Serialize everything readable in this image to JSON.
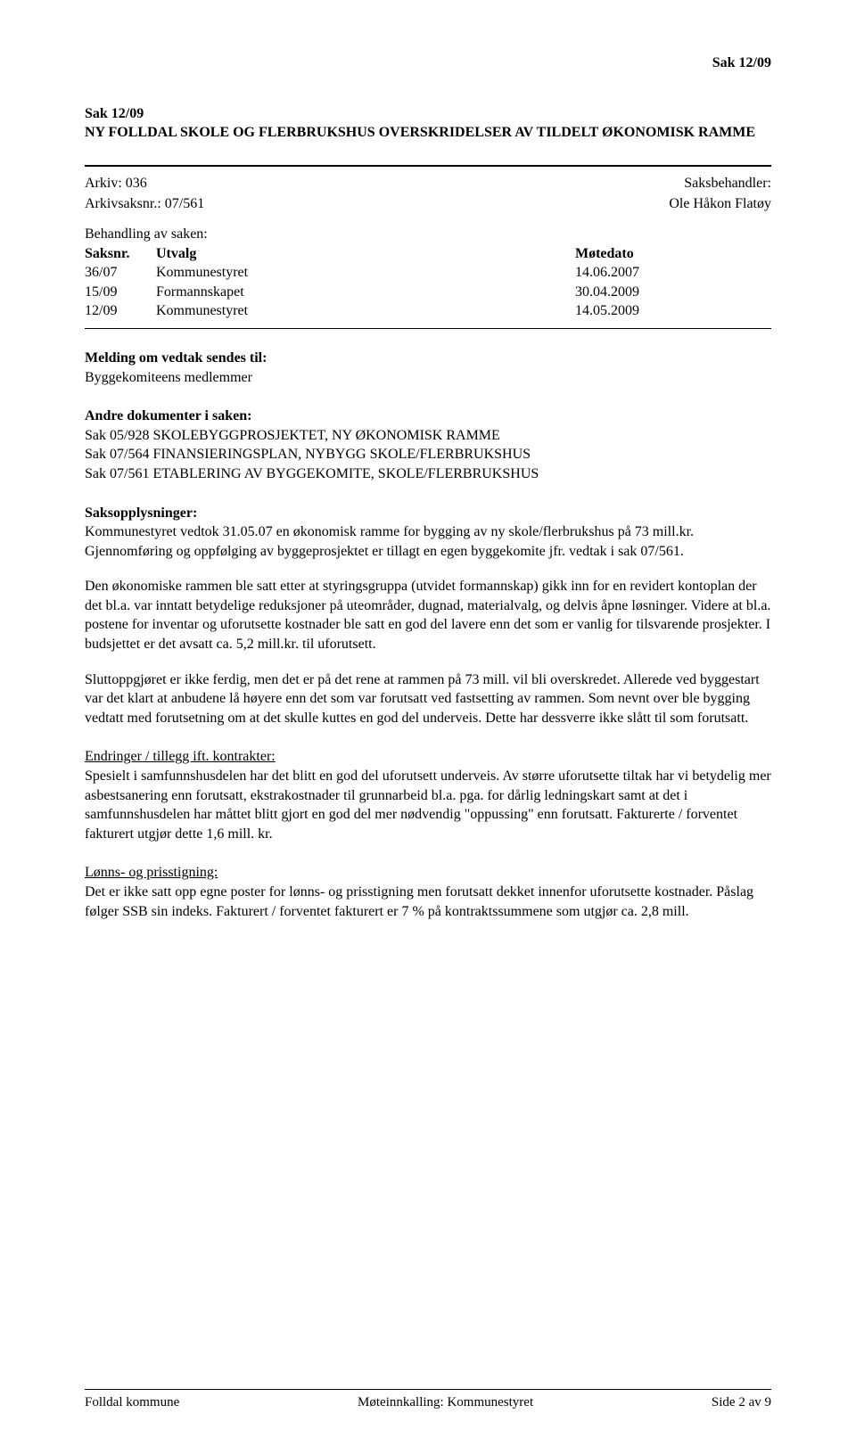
{
  "header": {
    "topRight": "Sak  12/09"
  },
  "title": {
    "line1": "Sak  12/09",
    "line2": "NY FOLLDAL SKOLE OG FLERBRUKSHUS OVERSKRIDELSER AV TILDELT ØKONOMISK RAMME"
  },
  "arkiv": {
    "leftLabel1": "Arkiv: 036",
    "leftLabel2": "Arkivsaksnr.: 07/561",
    "rightLabel1": "Saksbehandler:",
    "rightLabel2": "Ole Håkon Flatøy"
  },
  "behandling": {
    "header": "Behandling av saken:",
    "columns": {
      "saksnr": "Saksnr.",
      "utvalg": "Utvalg",
      "motedato": "Møtedato"
    },
    "rows": [
      {
        "saksnr": "36/07",
        "utvalg": "Kommunestyret",
        "dato": "14.06.2007"
      },
      {
        "saksnr": "15/09",
        "utvalg": "Formannskapet",
        "dato": "30.04.2009"
      },
      {
        "saksnr": "12/09",
        "utvalg": "Kommunestyret",
        "dato": "14.05.2009"
      }
    ]
  },
  "melding": {
    "heading": "Melding om vedtak sendes til:",
    "line1": "Byggekomiteens medlemmer"
  },
  "andreDok": {
    "heading": "Andre dokumenter i saken:",
    "items": [
      "Sak 05/928  SKOLEBYGGPROSJEKTET, NY ØKONOMISK RAMME",
      "Sak 07/564  FINANSIERINGSPLAN, NYBYGG SKOLE/FLERBRUKSHUS",
      "Sak 07/561  ETABLERING AV BYGGEKOMITE, SKOLE/FLERBRUKSHUS"
    ]
  },
  "saksopplysninger": {
    "heading": "Saksopplysninger:",
    "para1": "Kommunestyret vedtok 31.05.07 en økonomisk ramme for bygging av ny skole/flerbrukshus på 73 mill.kr. Gjennomføring og oppfølging av byggeprosjektet er tillagt en egen byggekomite jfr. vedtak i sak 07/561.",
    "para2": "Den økonomiske rammen ble satt etter at styringsgruppa (utvidet formannskap) gikk inn for en revidert kontoplan der det bl.a. var inntatt betydelige reduksjoner på uteområder, dugnad, materialvalg, og delvis åpne løsninger. Videre at bl.a. postene for inventar og uforutsette kostnader ble satt en god del lavere enn det som er vanlig for tilsvarende prosjekter. I budsjettet er det avsatt ca. 5,2 mill.kr. til uforutsett.",
    "para3": "Sluttoppgjøret er ikke ferdig, men det er på det rene at rammen på 73 mill. vil bli overskredet. Allerede ved byggestart var det klart at anbudene lå høyere enn det som var forutsatt ved fastsetting av rammen. Som nevnt over ble bygging vedtatt med forutsetning om at det skulle kuttes en god del underveis. Dette har dessverre ikke slått til som forutsatt."
  },
  "endringer": {
    "heading": "Endringer / tillegg ift. kontrakter:",
    "para": "Spesielt i samfunnshusdelen har det blitt en god del uforutsett underveis. Av større uforutsette tiltak har vi betydelig mer asbestsanering enn forutsatt, ekstrakostnader til grunnarbeid bl.a. pga. for dårlig ledningskart samt at det i samfunnshusdelen har måttet blitt gjort en god del mer nødvendig \"oppussing\" enn forutsatt. Fakturerte / forventet fakturert utgjør dette 1,6 mill. kr."
  },
  "lonns": {
    "heading": "Lønns- og prisstigning:",
    "para": "Det er ikke satt opp egne poster for lønns- og prisstigning men forutsatt dekket innenfor uforutsette kostnader. Påslag følger SSB sin indeks. Fakturert / forventet fakturert er 7 % på kontraktssummene som utgjør ca. 2,8 mill."
  },
  "footer": {
    "left": "Folldal kommune",
    "center": "Møteinnkalling: Kommunestyret",
    "right": "Side 2 av 9"
  }
}
